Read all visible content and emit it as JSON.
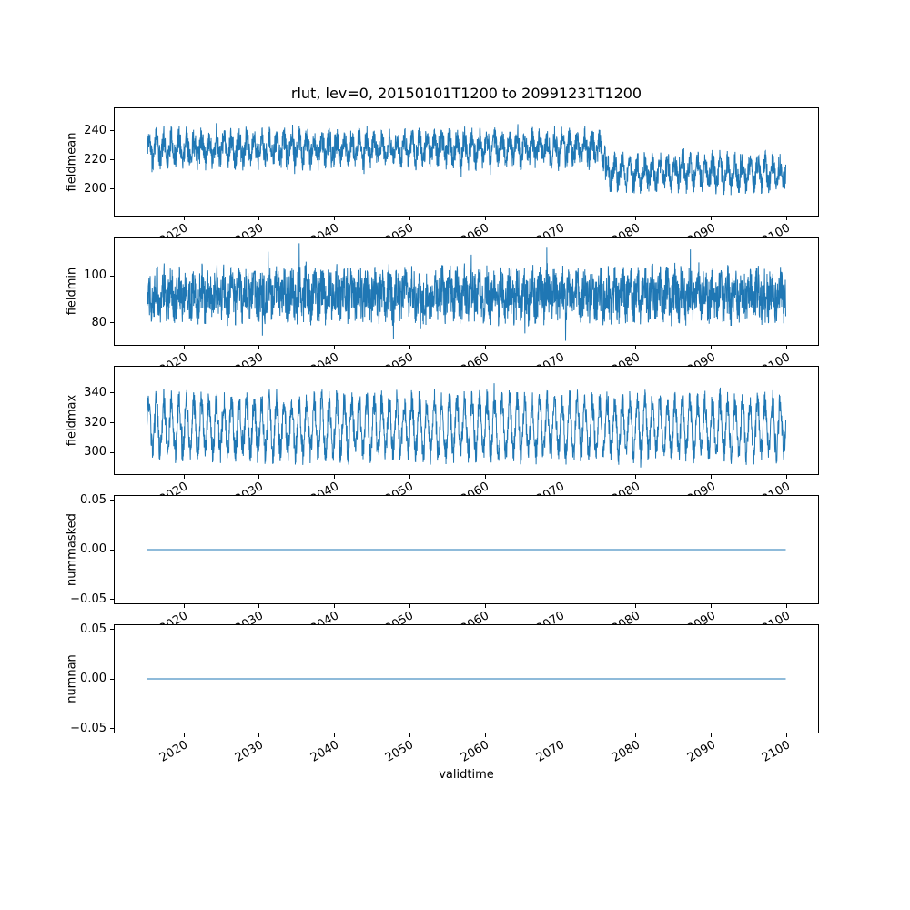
{
  "figure": {
    "title": "rlut, lev=0, 20150101T1200 to 20991231T1200",
    "background": "#ffffff",
    "axis_color": "#000000",
    "line_color": "#1f77b4"
  },
  "x_axis": {
    "label": "validtime",
    "x_start": 2015.0,
    "x_end": 2100.0,
    "xlim": [
      2010.7,
      2104.3
    ],
    "ticks": [
      2020,
      2030,
      2040,
      2050,
      2060,
      2070,
      2080,
      2090,
      2100
    ],
    "tick_labels": [
      "2020",
      "2030",
      "2040",
      "2050",
      "2060",
      "2070",
      "2080",
      "2090",
      "2100"
    ],
    "tick_rotation_deg": 30,
    "time_range_label": "20150101T1200 to 20991231T1200"
  },
  "chart_data": [
    {
      "type": "line",
      "ylabel": "fieldmean",
      "ylim": [
        181,
        256
      ],
      "yticks": [
        200,
        220,
        240
      ],
      "ytick_labels": [
        "200",
        "220",
        "240"
      ],
      "legend": "off",
      "grid": "off",
      "series": [
        {
          "name": "fieldmean",
          "description": "Dense noisy annual-cycle time series; mean level about 228 from 2015 until about 2076, stepping down to about 211 from 2076 to 2100; envelope roughly 205-252 before the step and 185-237 after.",
          "segments": [
            {
              "from": 2015,
              "to": 2076,
              "mean": 228
            },
            {
              "from": 2076,
              "to": 2100,
              "mean": 211
            }
          ],
          "gen": {
            "seed": 11,
            "n": 2800,
            "seasonal_amp": 7,
            "noise_amp": 9,
            "spike_amp": 10,
            "spike_prob": 0.03
          }
        }
      ]
    },
    {
      "type": "line",
      "ylabel": "fieldmin",
      "ylim": [
        70,
        117
      ],
      "yticks": [
        80,
        100
      ],
      "ytick_labels": [
        "80",
        "100"
      ],
      "legend": "off",
      "grid": "off",
      "series": [
        {
          "name": "fieldmin",
          "description": "Dense noisy time series, roughly stationary around 92 for 2015-2100 with envelope about 72-115 and occasional spikes up to about 118.",
          "segments": [
            {
              "from": 2015,
              "to": 2100,
              "mean": 92
            }
          ],
          "gen": {
            "seed": 22,
            "n": 2800,
            "seasonal_amp": 4,
            "noise_amp": 10,
            "spike_amp": 12,
            "spike_prob": 0.04
          }
        }
      ]
    },
    {
      "type": "line",
      "ylabel": "fieldmax",
      "ylim": [
        285,
        358
      ],
      "yticks": [
        300,
        320,
        340
      ],
      "ytick_labels": [
        "300",
        "320",
        "340"
      ],
      "legend": "off",
      "grid": "off",
      "series": [
        {
          "name": "fieldmax",
          "description": "Strong annual oscillation around 317 for 2015-2100 with envelope about 288-352 and spikes up to about 357.",
          "segments": [
            {
              "from": 2015,
              "to": 2100,
              "mean": 317
            }
          ],
          "gen": {
            "seed": 33,
            "n": 2800,
            "seasonal_amp": 17,
            "noise_amp": 9,
            "spike_amp": 8,
            "spike_prob": 0.03
          }
        }
      ]
    },
    {
      "type": "line",
      "ylabel": "nummasked",
      "ylim": [
        -0.055,
        0.055
      ],
      "yticks": [
        -0.05,
        0,
        0.05
      ],
      "ytick_labels": [
        "−0.05",
        "0.00",
        "0.05"
      ],
      "legend": "off",
      "grid": "off",
      "series": [
        {
          "name": "nummasked",
          "constant": 0,
          "description": "Constant zero for the whole period 2015-2100."
        }
      ]
    },
    {
      "type": "line",
      "ylabel": "numnan",
      "ylim": [
        -0.055,
        0.055
      ],
      "yticks": [
        -0.05,
        0,
        0.05
      ],
      "ytick_labels": [
        "−0.05",
        "0.00",
        "0.05"
      ],
      "legend": "off",
      "grid": "off",
      "series": [
        {
          "name": "numnan",
          "constant": 0,
          "description": "Constant zero for the whole period 2015-2100."
        }
      ]
    }
  ]
}
